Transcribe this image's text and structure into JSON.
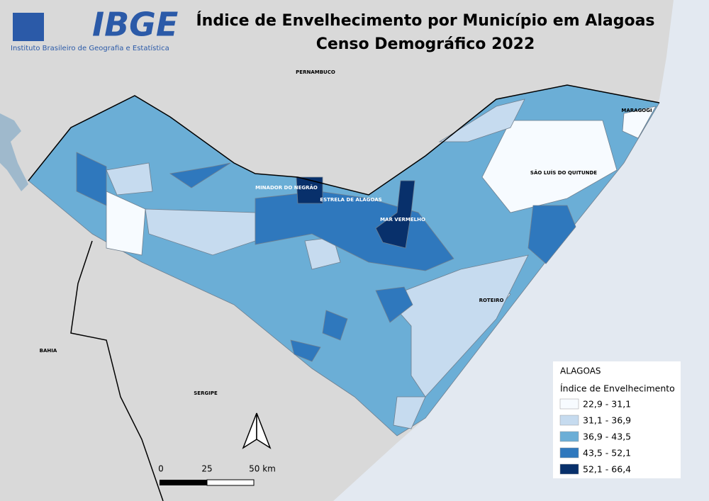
{
  "logo": {
    "acronym": "IBGE",
    "name": "Instituto Brasileiro de Geografia e Estatística"
  },
  "title": "Índice de Envelhecimento por Município em Alagoas",
  "subtitle": "Censo Demográfico 2022",
  "region_labels": [
    "PERNAMBUCO",
    "BAHIA",
    "SERGIPE"
  ],
  "municipality_labels": [
    "MARAGOGI",
    "SÃO LUÍS DO QUITUNDE",
    "ROTEIRO",
    "MINADOR DO NEGRÃO",
    "ESTRELA DE ALAGOAS",
    "MAR VERMELHO"
  ],
  "legend": {
    "heading": "ALAGOAS",
    "title": "Índice de Envelhecimento",
    "classes": [
      {
        "label": "22,9 - 31,1",
        "color": "#f7fbff"
      },
      {
        "label": "31,1 - 36,9",
        "color": "#c6dbef"
      },
      {
        "label": "36,9 - 43,5",
        "color": "#6baed6"
      },
      {
        "label": "43,5 - 52,1",
        "color": "#2f78bd"
      },
      {
        "label": "52,1 - 66,4",
        "color": "#08306b"
      }
    ]
  },
  "scale_bar": [
    "0",
    "25",
    "50 km"
  ]
}
